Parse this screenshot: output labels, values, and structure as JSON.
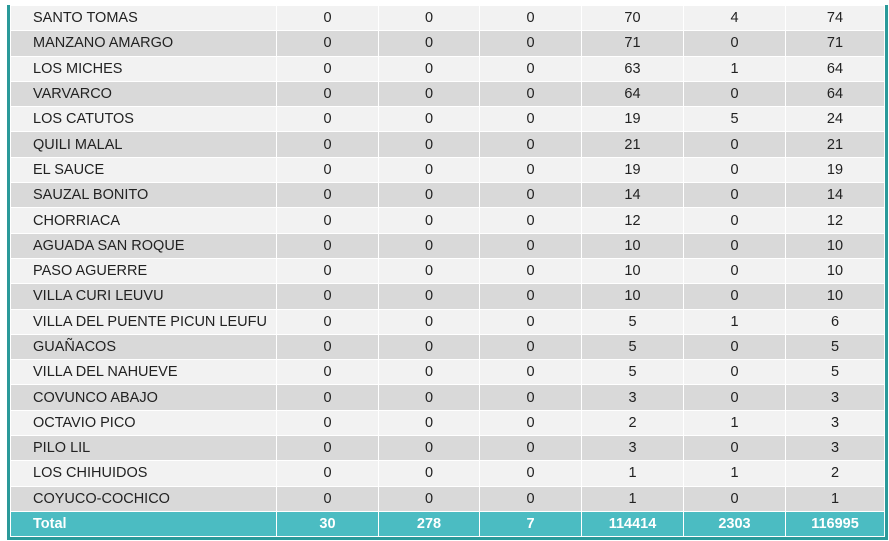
{
  "rows": [
    [
      "SANTO TOMAS",
      "0",
      "0",
      "0",
      "70",
      "4",
      "74"
    ],
    [
      "MANZANO AMARGO",
      "0",
      "0",
      "0",
      "71",
      "0",
      "71"
    ],
    [
      "LOS MICHES",
      "0",
      "0",
      "0",
      "63",
      "1",
      "64"
    ],
    [
      "VARVARCO",
      "0",
      "0",
      "0",
      "64",
      "0",
      "64"
    ],
    [
      "LOS CATUTOS",
      "0",
      "0",
      "0",
      "19",
      "5",
      "24"
    ],
    [
      "QUILI MALAL",
      "0",
      "0",
      "0",
      "21",
      "0",
      "21"
    ],
    [
      "EL SAUCE",
      "0",
      "0",
      "0",
      "19",
      "0",
      "19"
    ],
    [
      "SAUZAL BONITO",
      "0",
      "0",
      "0",
      "14",
      "0",
      "14"
    ],
    [
      "CHORRIACA",
      "0",
      "0",
      "0",
      "12",
      "0",
      "12"
    ],
    [
      "AGUADA SAN ROQUE",
      "0",
      "0",
      "0",
      "10",
      "0",
      "10"
    ],
    [
      "PASO AGUERRE",
      "0",
      "0",
      "0",
      "10",
      "0",
      "10"
    ],
    [
      "VILLA CURI LEUVU",
      "0",
      "0",
      "0",
      "10",
      "0",
      "10"
    ],
    [
      "VILLA DEL PUENTE PICUN LEUFU",
      "0",
      "0",
      "0",
      "5",
      "1",
      "6"
    ],
    [
      "GUAÑACOS",
      "0",
      "0",
      "0",
      "5",
      "0",
      "5"
    ],
    [
      "VILLA DEL NAHUEVE",
      "0",
      "0",
      "0",
      "5",
      "0",
      "5"
    ],
    [
      "COVUNCO ABAJO",
      "0",
      "0",
      "0",
      "3",
      "0",
      "3"
    ],
    [
      "OCTAVIO PICO",
      "0",
      "0",
      "0",
      "2",
      "1",
      "3"
    ],
    [
      "PILO LIL",
      "0",
      "0",
      "0",
      "3",
      "0",
      "3"
    ],
    [
      "LOS CHIHUIDOS",
      "0",
      "0",
      "0",
      "1",
      "1",
      "2"
    ],
    [
      "COYUCO-COCHICO",
      "0",
      "0",
      "0",
      "1",
      "0",
      "1"
    ]
  ],
  "total": [
    "Total",
    "30",
    "278",
    "7",
    "114414",
    "2303",
    "116995"
  ],
  "colors": {
    "total_bg": "#4bbcc2",
    "border": "#2a9a9a",
    "row_light": "#f2f2f2",
    "row_dark": "#d9d9d9"
  }
}
